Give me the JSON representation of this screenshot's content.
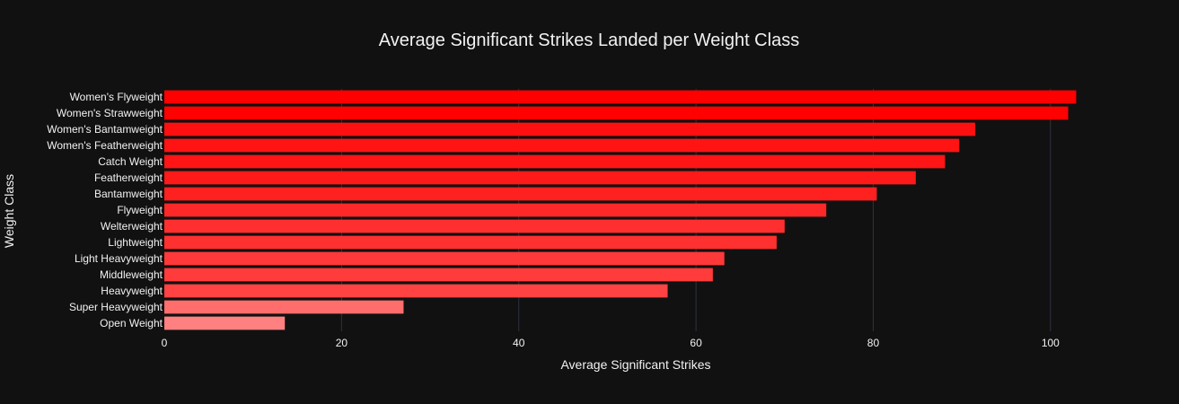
{
  "chart_data": {
    "type": "bar",
    "orientation": "horizontal",
    "title": "Average Significant Strikes Landed per Weight Class",
    "xlabel": "Average Significant Strikes",
    "ylabel": "Weight Class",
    "xlim": [
      0,
      106.5
    ],
    "xticks": [
      0,
      20,
      40,
      60,
      80,
      100
    ],
    "grid": true,
    "categories": [
      "Open Weight",
      "Super Heavyweight",
      "Heavyweight",
      "Middleweight",
      "Light Heavyweight",
      "Lightweight",
      "Welterweight",
      "Flyweight",
      "Bantamweight",
      "Featherweight",
      "Catch Weight",
      "Women's Featherweight",
      "Women's Bantamweight",
      "Women's Strawweight",
      "Women's Flyweight"
    ],
    "values": [
      13.6,
      27.0,
      56.8,
      61.9,
      63.2,
      69.1,
      70.0,
      74.7,
      80.4,
      84.8,
      88.1,
      89.7,
      91.5,
      102.0,
      102.9
    ],
    "colorscale": {
      "low": "#ff8080",
      "high": "#ff0000"
    }
  },
  "colors": {
    "background": "#111111",
    "grid": "#2e3240",
    "text": "#f2f2f2"
  }
}
